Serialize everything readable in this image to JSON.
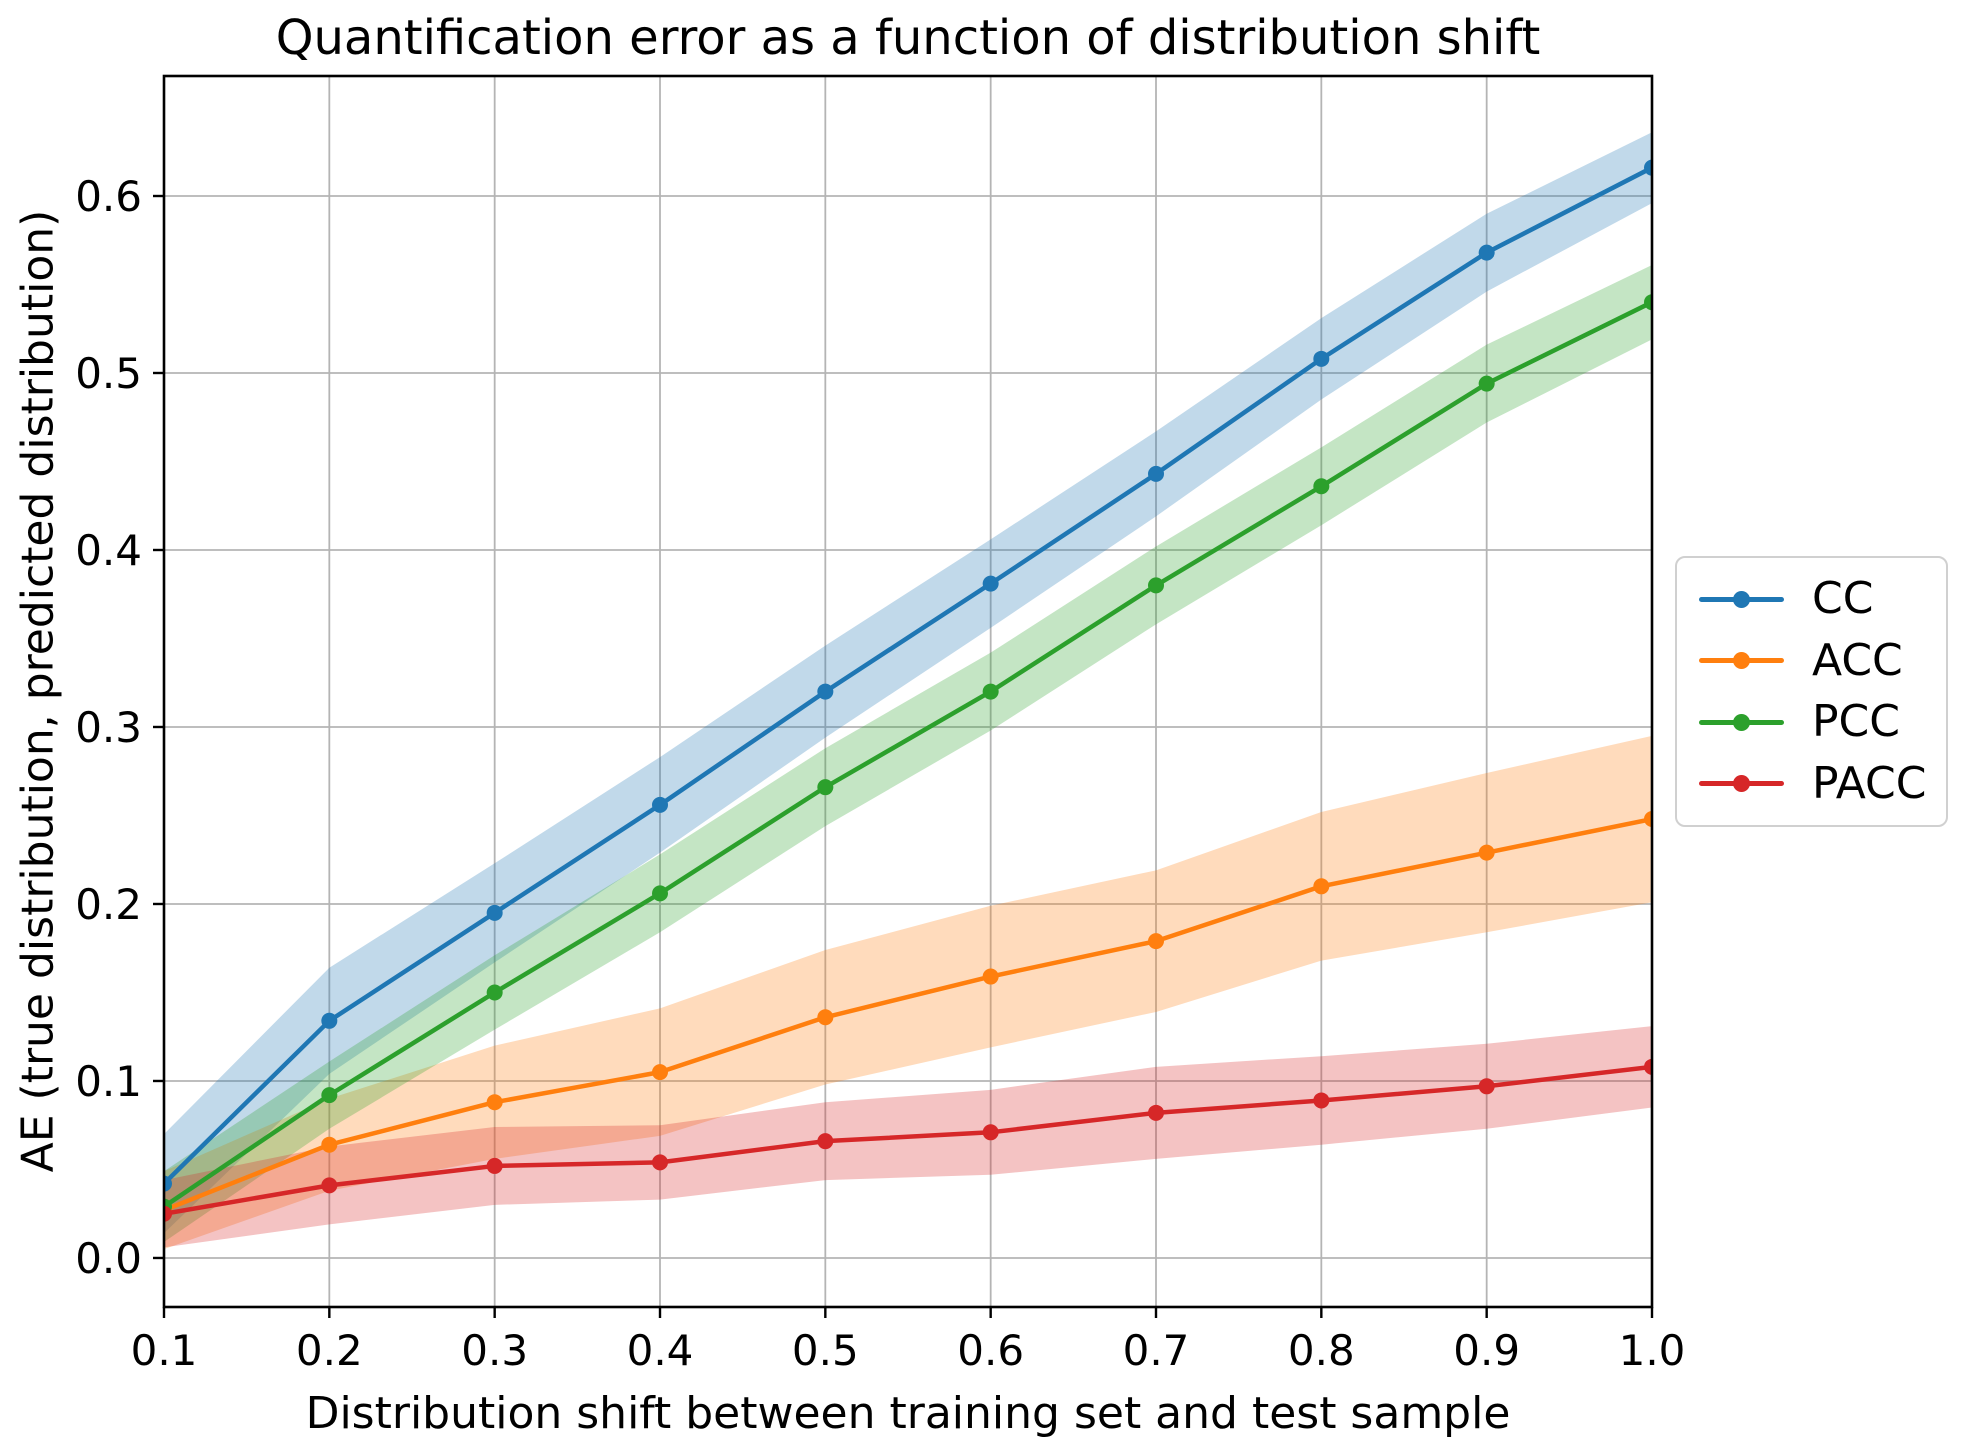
{
  "chart_data": {
    "type": "line",
    "title": "Quantification error as a function of distribution shift",
    "xlabel": "Distribution shift between training set and test sample",
    "ylabel": "AE (true distribution, predicted distribution)",
    "x": [
      0.1,
      0.2,
      0.3,
      0.4,
      0.5,
      0.6,
      0.7,
      0.8,
      0.9,
      1.0
    ],
    "xticks": [
      "0.1",
      "0.2",
      "0.3",
      "0.4",
      "0.5",
      "0.6",
      "0.7",
      "0.8",
      "0.9",
      "1.0"
    ],
    "yticks": [
      "0.0",
      "0.1",
      "0.2",
      "0.3",
      "0.4",
      "0.5",
      "0.6"
    ],
    "xlim": [
      0.1,
      1.0
    ],
    "ylim": [
      -0.0277,
      0.6678
    ],
    "grid": true,
    "grid_color": "#b4b4b4",
    "legend_position": "right-outside",
    "band_opacity": 0.28,
    "series": [
      {
        "name": "CC",
        "color": "#1f77b4",
        "marker": "circle",
        "values": [
          0.042,
          0.134,
          0.195,
          0.256,
          0.32,
          0.381,
          0.443,
          0.508,
          0.568,
          0.616
        ],
        "band_lower": [
          0.014,
          0.104,
          0.167,
          0.229,
          0.294,
          0.356,
          0.419,
          0.485,
          0.546,
          0.596
        ],
        "band_upper": [
          0.07,
          0.164,
          0.223,
          0.283,
          0.346,
          0.406,
          0.467,
          0.531,
          0.59,
          0.636
        ]
      },
      {
        "name": "ACC",
        "color": "#ff7f0e",
        "marker": "circle",
        "values": [
          0.027,
          0.064,
          0.088,
          0.105,
          0.136,
          0.159,
          0.179,
          0.21,
          0.229,
          0.248
        ],
        "band_lower": [
          0.005,
          0.038,
          0.056,
          0.069,
          0.098,
          0.119,
          0.139,
          0.168,
          0.184,
          0.201
        ],
        "band_upper": [
          0.049,
          0.09,
          0.12,
          0.141,
          0.174,
          0.199,
          0.219,
          0.252,
          0.274,
          0.295
        ]
      },
      {
        "name": "PCC",
        "color": "#2ca02c",
        "marker": "circle",
        "values": [
          0.029,
          0.092,
          0.15,
          0.206,
          0.266,
          0.32,
          0.38,
          0.436,
          0.494,
          0.54
        ],
        "band_lower": [
          0.009,
          0.073,
          0.129,
          0.184,
          0.244,
          0.298,
          0.358,
          0.414,
          0.472,
          0.519
        ],
        "band_upper": [
          0.049,
          0.111,
          0.171,
          0.228,
          0.288,
          0.342,
          0.402,
          0.458,
          0.516,
          0.561
        ]
      },
      {
        "name": "PACC",
        "color": "#d62728",
        "marker": "circle",
        "values": [
          0.025,
          0.041,
          0.052,
          0.054,
          0.066,
          0.071,
          0.082,
          0.089,
          0.097,
          0.108
        ],
        "band_lower": [
          0.006,
          0.019,
          0.03,
          0.033,
          0.044,
          0.047,
          0.056,
          0.064,
          0.073,
          0.085
        ],
        "band_upper": [
          0.044,
          0.063,
          0.074,
          0.075,
          0.088,
          0.095,
          0.108,
          0.114,
          0.121,
          0.131
        ]
      }
    ]
  }
}
